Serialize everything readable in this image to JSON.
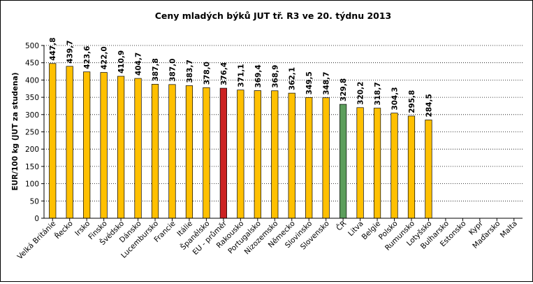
{
  "chart_data": {
    "type": "bar",
    "title": "Ceny mladých býků JUT  tř. R3  ve 20. týdnu 2013",
    "ylabel": "EUR/100 kg (JUT za studena)",
    "xlabel": "",
    "ylim": [
      0,
      500
    ],
    "ytick_step": 50,
    "grid": "horizontal dotted",
    "legend": "none",
    "categories": [
      "Velká Británie",
      "Řecko",
      "Irsko",
      "Finsko",
      "Švédsko",
      "Dánsko",
      "Lucembursko",
      "Francie",
      "Itálie",
      "Španělsko",
      "EU - průměr",
      "Rakousko",
      "Portugalsko",
      "Nizozemsko",
      "Německo",
      "Slovinsko",
      "Slovensko",
      "ČR",
      "Litva",
      "Belgie",
      "Polsko",
      "Rumunsko",
      "Lotyšsko",
      "Bulharsko",
      "Estonsko",
      "Kypr",
      "Maďarsko",
      "Malta"
    ],
    "values": [
      447.8,
      439.7,
      423.6,
      422.0,
      410.9,
      404.7,
      387.8,
      387.0,
      383.7,
      378.0,
      376.4,
      371.1,
      369.4,
      368.9,
      362.1,
      349.5,
      348.7,
      329.8,
      320.2,
      318.7,
      304.3,
      295.8,
      284.5,
      null,
      null,
      null,
      null,
      null
    ],
    "value_labels": [
      "447,8",
      "439,7",
      "423,6",
      "422,0",
      "410,9",
      "404,7",
      "387,8",
      "387,0",
      "383,7",
      "378,0",
      "376,4",
      "371,1",
      "369,4",
      "368,9",
      "362,1",
      "349,5",
      "348,7",
      "329,8",
      "320,2",
      "318,7",
      "304,3",
      "295,8",
      "284,5",
      "",
      "",
      "",
      "",
      ""
    ],
    "colors": {
      "default": "#ffc000",
      "highlight_eu": "#cc2222",
      "highlight_cr": "#5c9e5c",
      "bar_stroke": "#000000",
      "grid": "#000000"
    },
    "highlight": {
      "EU - průměr": "highlight_eu",
      "ČR": "highlight_cr"
    }
  }
}
